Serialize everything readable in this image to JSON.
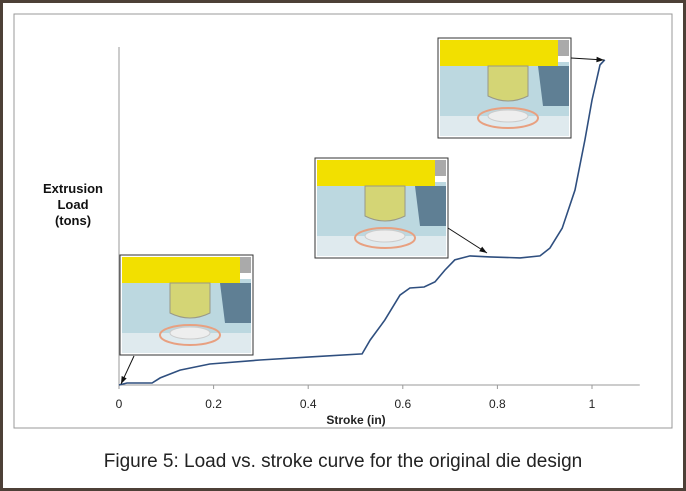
{
  "chart_data": {
    "type": "line",
    "xlabel": "Stroke (in)",
    "ylabel": "Extrusion Load (tons)",
    "caption": "Figure 5: Load vs. stroke curve for the original die design",
    "x": [
      0,
      0.017,
      0.07,
      0.087,
      0.129,
      0.192,
      0.298,
      0.404,
      0.514,
      0.531,
      0.562,
      0.594,
      0.615,
      0.645,
      0.668,
      0.689,
      0.71,
      0.742,
      0.784,
      0.848,
      0.89,
      0.911,
      0.937,
      0.964,
      0.985,
      1.0,
      1.017,
      1.027
    ],
    "values": [
      0,
      0.6,
      0.6,
      2.1,
      4.4,
      6.2,
      7.4,
      8.3,
      9.2,
      13.3,
      19.2,
      26.6,
      28.7,
      29,
      30.5,
      34,
      37,
      38.2,
      37.9,
      37.6,
      38.2,
      40.5,
      46.4,
      57.7,
      72.5,
      84.3,
      94.7,
      96.2
    ],
    "color": "#2f4f7f",
    "xlim": [
      0,
      1.101
    ],
    "xticks": [
      0,
      0.2,
      0.4,
      0.6,
      0.8,
      1
    ],
    "ylim": [
      0,
      100
    ]
  }
}
